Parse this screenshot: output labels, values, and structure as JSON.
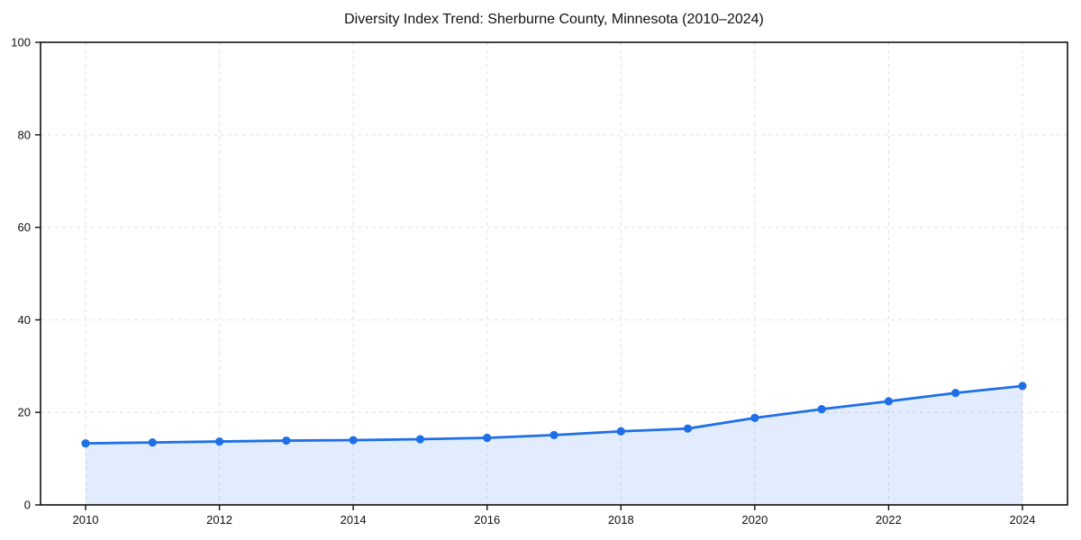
{
  "chart_data": {
    "type": "area",
    "title": "Diversity Index Trend: Sherburne County, Minnesota (2010–2024)",
    "x": [
      2010,
      2011,
      2012,
      2013,
      2014,
      2015,
      2016,
      2017,
      2018,
      2019,
      2020,
      2021,
      2022,
      2023,
      2024
    ],
    "series": [
      {
        "name": "Diversity Index",
        "values": [
          13.3,
          13.5,
          13.7,
          13.9,
          14.0,
          14.2,
          14.5,
          15.1,
          15.9,
          16.5,
          18.8,
          20.7,
          22.4,
          24.2,
          25.7
        ]
      }
    ],
    "xlabel": "",
    "ylabel": "",
    "xlim": [
      2009.3,
      2024.7
    ],
    "ylim": [
      0,
      100
    ],
    "xticks": [
      2010,
      2012,
      2014,
      2016,
      2018,
      2020,
      2022,
      2024
    ],
    "yticks": [
      0,
      20,
      40,
      60,
      80,
      100
    ],
    "grid": true,
    "grid_style": "dashed",
    "legend": false,
    "line_color": "#1f6fe8",
    "marker_color": "#1f6fe8",
    "fill_color": "rgba(31, 111, 232, 0.13)",
    "grid_color": "#e2e2e2",
    "axis_color": "#111111",
    "background_color": "#ffffff"
  }
}
